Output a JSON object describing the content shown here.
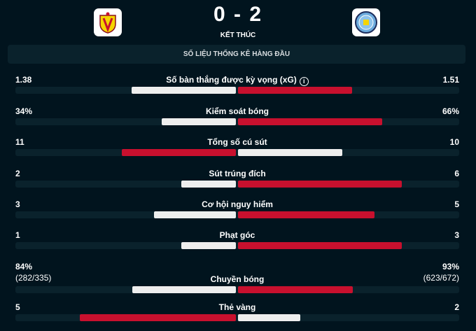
{
  "match": {
    "home_team": "Villarreal",
    "away_team": "Manchester City",
    "score": "0 - 2",
    "status": "KẾT THÚC"
  },
  "section_title": "SỐ LIỆU THỐNG KÊ HÀNG ĐẦU",
  "colors": {
    "leader": "#c8102e",
    "other": "#eeeeee",
    "track": "#0a222c",
    "background": "#01141e"
  },
  "stats": [
    {
      "label": "Số bàn thắng được kỳ vọng (xG)",
      "home": "1.38",
      "away": "1.51",
      "hv": 1.38,
      "av": 1.51,
      "info": true
    },
    {
      "label": "Kiểm soát bóng",
      "home": "34%",
      "away": "66%",
      "hv": 34,
      "av": 66
    },
    {
      "label": "Tổng số cú sút",
      "home": "11",
      "away": "10",
      "hv": 11,
      "av": 10
    },
    {
      "label": "Sút trúng đích",
      "home": "2",
      "away": "6",
      "hv": 2,
      "av": 6
    },
    {
      "label": "Cơ hội nguy hiểm",
      "home": "3",
      "away": "5",
      "hv": 3,
      "av": 5
    },
    {
      "label": "Phạt góc",
      "home": "1",
      "away": "3",
      "hv": 1,
      "av": 3
    },
    {
      "label": "Chuyền bóng",
      "home": "84%",
      "away": "93%",
      "home_sub": "(282/335)",
      "away_sub": "(623/672)",
      "hv": 84,
      "av": 93
    },
    {
      "label": "Thẻ vàng",
      "home": "5",
      "away": "2",
      "hv": 5,
      "av": 2
    }
  ]
}
